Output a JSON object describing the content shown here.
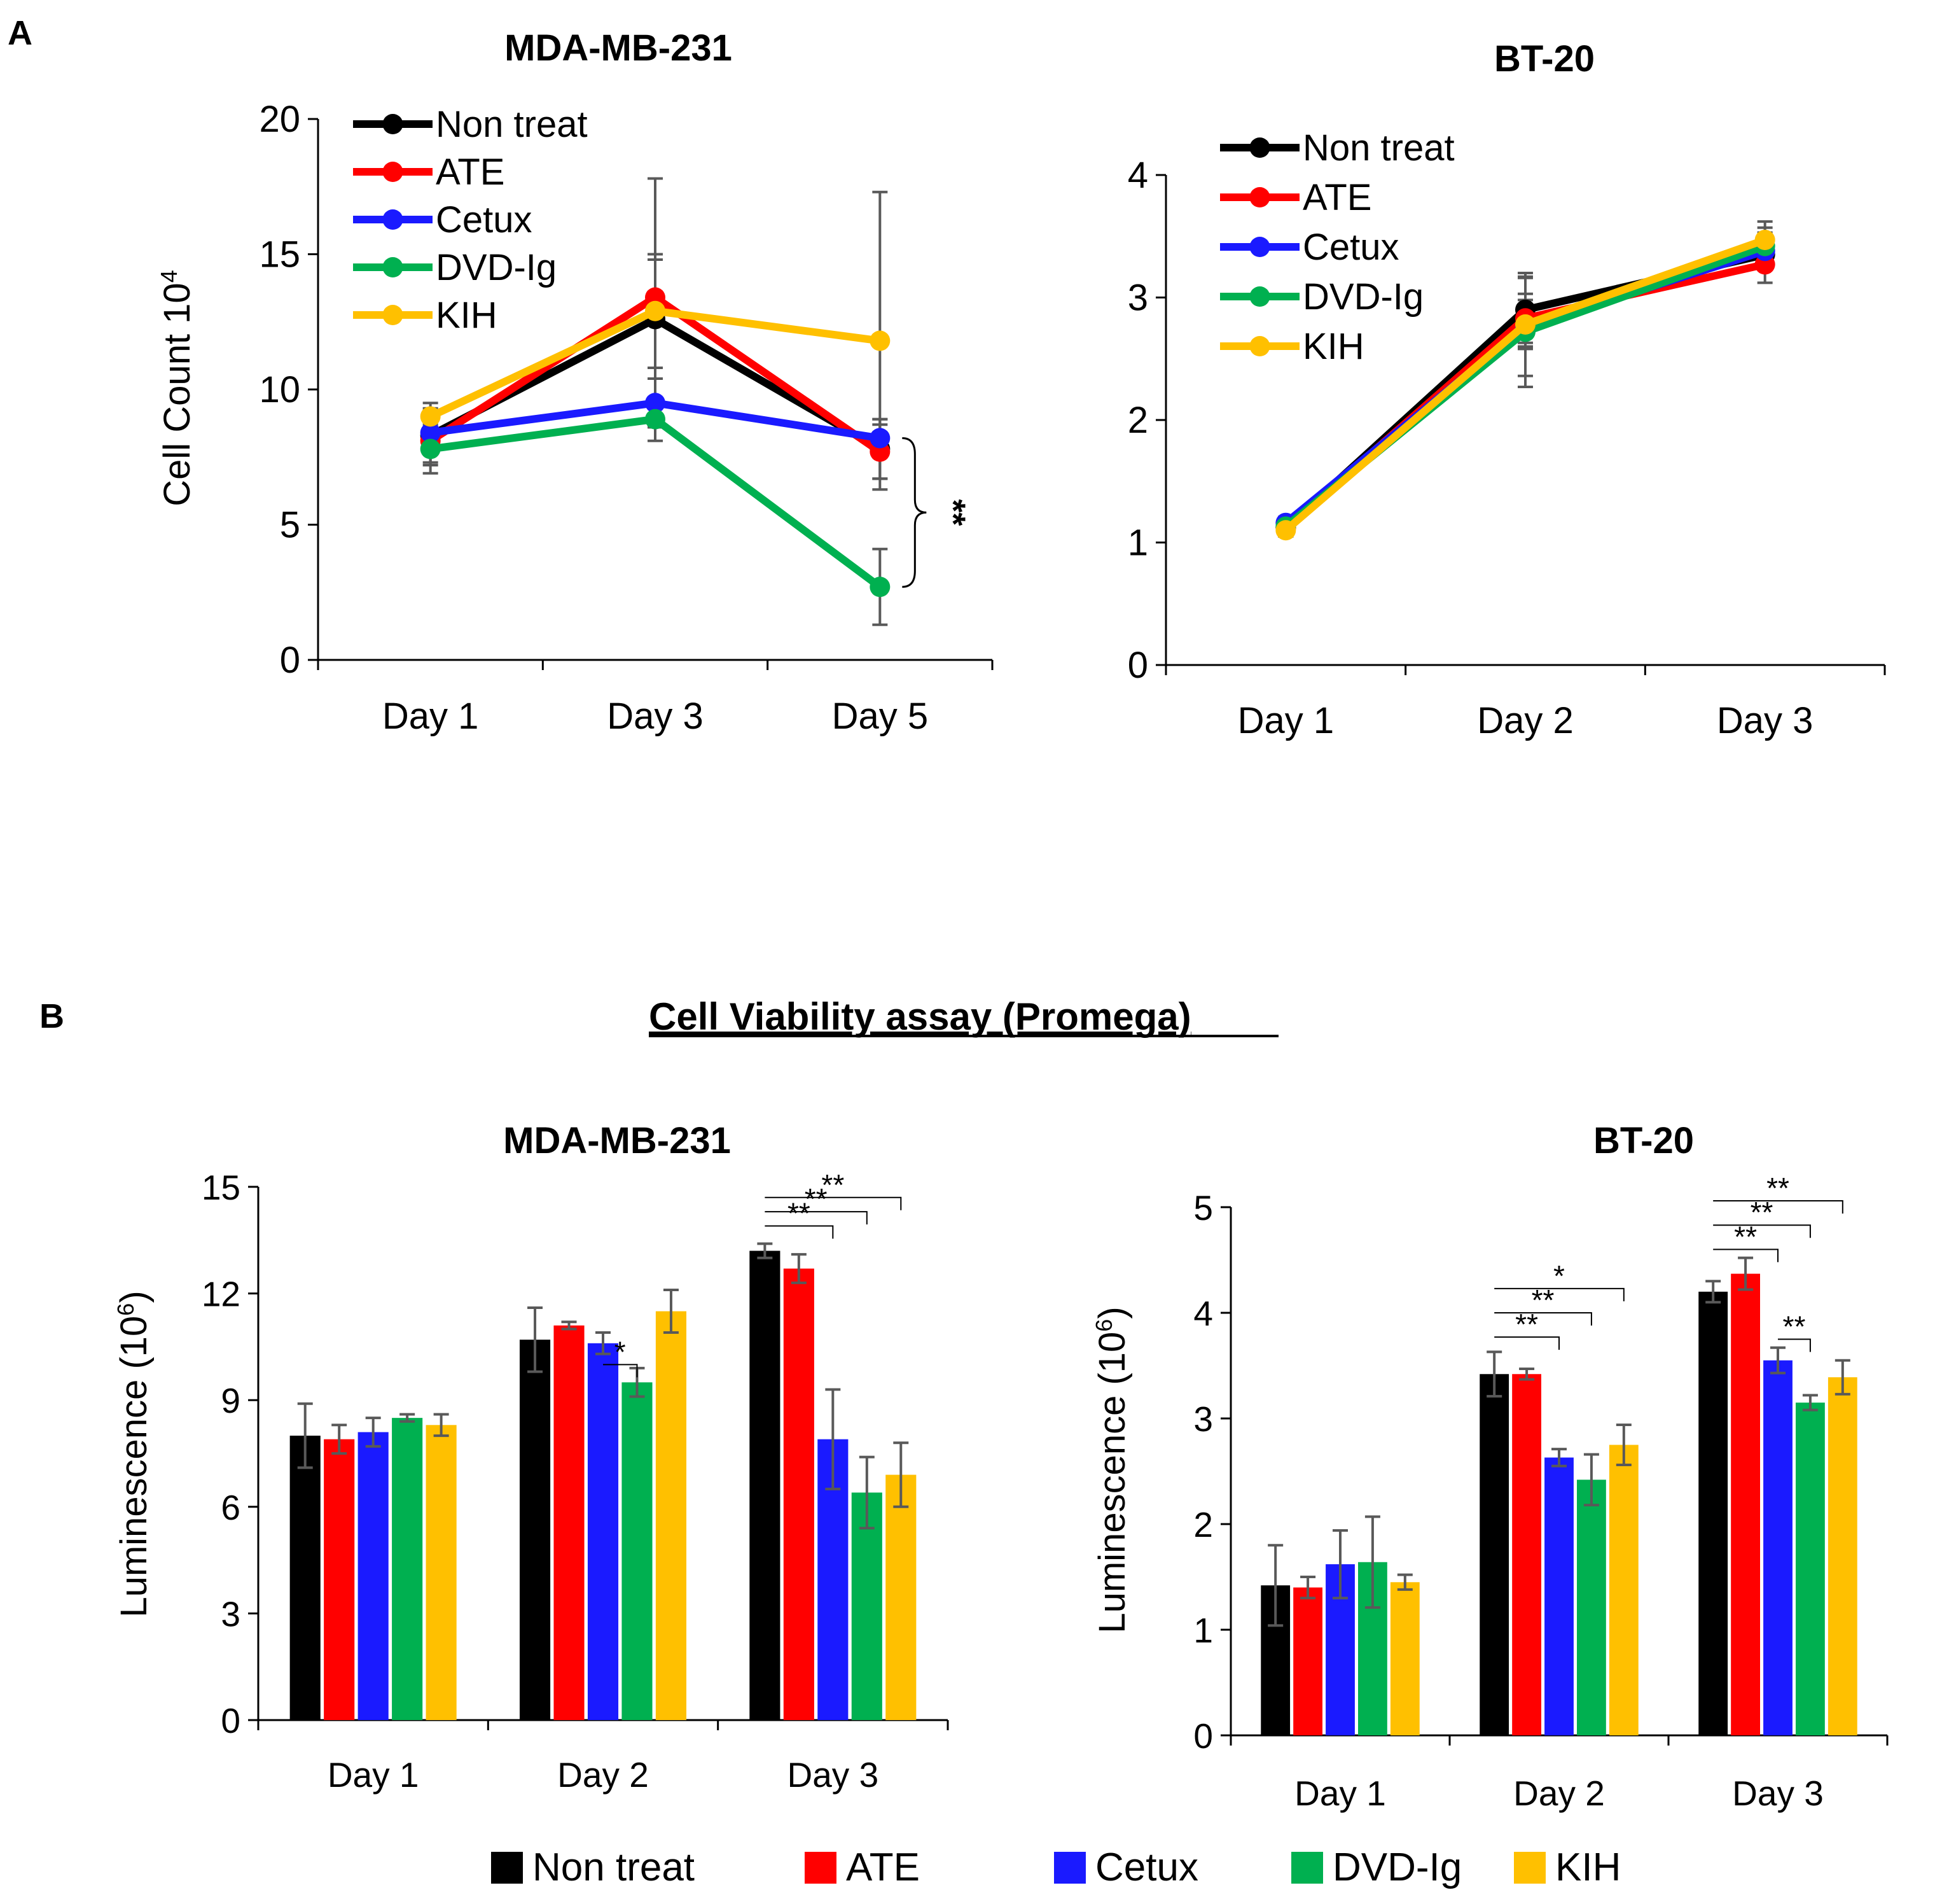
{
  "colors": {
    "Non treat": "#000000",
    "ATE": "#ff0000",
    "Cetux": "#1a1aff",
    "DVD-Ig": "#00b050",
    "KIH": "#ffc000",
    "error_bar": "#595959"
  },
  "panel_labels": {
    "a": "A",
    "b": "B"
  },
  "section_b_title": "Cell Viability assay (Promega)",
  "bottom_legend": [
    "Non treat",
    "ATE",
    "Cetux",
    "DVD-Ig",
    "KIH"
  ],
  "chart_data": [
    {
      "type": "line",
      "title": "MDA-MB-231",
      "ylabel_main": "Cell Count 10",
      "ylabel_sup": "4",
      "xlabel": "",
      "categories": [
        "Day 1",
        "Day 3",
        "Day 5"
      ],
      "ylim": [
        0,
        20
      ],
      "yticks": [
        0,
        5,
        10,
        15,
        20
      ],
      "legend": [
        "Non treat",
        "ATE",
        "Cetux",
        "DVD-Ig",
        "KIH"
      ],
      "series": [
        {
          "name": "Non treat",
          "values": [
            8.3,
            12.6,
            7.8
          ],
          "errors": [
            1.0,
            2.2,
            1.1
          ]
        },
        {
          "name": "ATE",
          "values": [
            8.1,
            13.4,
            7.7
          ],
          "errors": [
            0.9,
            4.4,
            1.0
          ]
        },
        {
          "name": "Cetux",
          "values": [
            8.4,
            9.5,
            8.2
          ],
          "errors": [
            0.8,
            0.9,
            0.7
          ]
        },
        {
          "name": "DVD-Ig",
          "values": [
            7.8,
            8.9,
            2.7
          ],
          "errors": [
            0.9,
            0.8,
            1.4
          ]
        },
        {
          "name": "KIH",
          "values": [
            9.0,
            12.9,
            11.8
          ],
          "errors": [
            0.5,
            2.1,
            5.5
          ]
        }
      ],
      "annotations": [
        {
          "text": "**",
          "category": "Day 5",
          "y_from": 2.7,
          "y_to": 8.2
        }
      ]
    },
    {
      "type": "line",
      "title": "BT-20",
      "xlabel": "",
      "ylabel": "",
      "categories": [
        "Day 1",
        "Day 2",
        "Day 3"
      ],
      "ylim": [
        0,
        4
      ],
      "yticks": [
        0,
        1,
        2,
        3,
        4
      ],
      "legend": [
        "Non treat",
        "ATE",
        "Cetux",
        "DVD-Ig",
        "KIH"
      ],
      "series": [
        {
          "name": "Non treat",
          "values": [
            1.12,
            2.9,
            3.35
          ],
          "errors": [
            0.07,
            0.3,
            0.1
          ]
        },
        {
          "name": "ATE",
          "values": [
            1.12,
            2.83,
            3.27
          ],
          "errors": [
            0.06,
            0.2,
            0.15
          ]
        },
        {
          "name": "Cetux",
          "values": [
            1.16,
            2.76,
            3.38
          ],
          "errors": [
            0.05,
            0.4,
            0.15
          ]
        },
        {
          "name": "DVD-Ig",
          "values": [
            1.13,
            2.72,
            3.42
          ],
          "errors": [
            0.06,
            0.45,
            0.15
          ]
        },
        {
          "name": "KIH",
          "values": [
            1.1,
            2.78,
            3.47
          ],
          "errors": [
            0.05,
            0.2,
            0.15
          ]
        }
      ]
    },
    {
      "type": "bar",
      "title": "MDA-MB-231",
      "ylabel_main": "Luminescence (10",
      "ylabel_sup": "6",
      "ylabel_end": ")",
      "xlabel": "",
      "categories": [
        "Day 1",
        "Day 2",
        "Day 3"
      ],
      "ylim": [
        0,
        15
      ],
      "yticks": [
        0,
        3,
        6,
        9,
        12,
        15
      ],
      "series": [
        {
          "name": "Non treat",
          "values": [
            8.0,
            10.7,
            13.2
          ],
          "errors": [
            0.9,
            0.9,
            0.2
          ]
        },
        {
          "name": "ATE",
          "values": [
            7.9,
            11.1,
            12.7
          ],
          "errors": [
            0.4,
            0.1,
            0.4
          ]
        },
        {
          "name": "Cetux",
          "values": [
            8.1,
            10.6,
            7.9
          ],
          "errors": [
            0.4,
            0.3,
            1.4
          ]
        },
        {
          "name": "DVD-Ig",
          "values": [
            8.5,
            9.5,
            6.4
          ],
          "errors": [
            0.1,
            0.4,
            1.0
          ]
        },
        {
          "name": "KIH",
          "values": [
            8.3,
            11.5,
            6.9
          ],
          "errors": [
            0.3,
            0.6,
            0.9
          ]
        }
      ],
      "significance": [
        {
          "text": "*",
          "category": "Day 2",
          "from": "Cetux",
          "to": "DVD-Ig",
          "level": 10.0
        },
        {
          "text": "**",
          "category": "Day 3",
          "from": "Non treat",
          "to": "Cetux",
          "level": 13.9
        },
        {
          "text": "**",
          "category": "Day 3",
          "from": "Non treat",
          "to": "DVD-Ig",
          "level": 14.3
        },
        {
          "text": "**",
          "category": "Day 3",
          "from": "Non treat",
          "to": "KIH",
          "level": 14.7
        }
      ]
    },
    {
      "type": "bar",
      "title": "BT-20",
      "ylabel_main": "Luminescence (10",
      "ylabel_sup": "6",
      "ylabel_end": ")",
      "xlabel": "",
      "categories": [
        "Day 1",
        "Day 2",
        "Day 3"
      ],
      "ylim": [
        0,
        5
      ],
      "yticks": [
        0,
        1,
        2,
        3,
        4,
        5
      ],
      "series": [
        {
          "name": "Non treat",
          "values": [
            1.42,
            3.42,
            4.2
          ],
          "errors": [
            0.38,
            0.21,
            0.1
          ]
        },
        {
          "name": "ATE",
          "values": [
            1.4,
            3.42,
            4.37
          ],
          "errors": [
            0.1,
            0.05,
            0.15
          ]
        },
        {
          "name": "Cetux",
          "values": [
            1.62,
            2.63,
            3.55
          ],
          "errors": [
            0.32,
            0.08,
            0.12
          ]
        },
        {
          "name": "DVD-Ig",
          "values": [
            1.64,
            2.42,
            3.15
          ],
          "errors": [
            0.43,
            0.24,
            0.07
          ]
        },
        {
          "name": "KIH",
          "values": [
            1.45,
            2.75,
            3.39
          ],
          "errors": [
            0.07,
            0.19,
            0.16
          ]
        }
      ],
      "significance": [
        {
          "text": "**",
          "category": "Day 2",
          "from": "Non treat",
          "to": "Cetux",
          "level": 3.77
        },
        {
          "text": "**",
          "category": "Day 2",
          "from": "Non treat",
          "to": "DVD-Ig",
          "level": 4.0
        },
        {
          "text": "*",
          "category": "Day 2",
          "from": "Non treat",
          "to": "KIH",
          "level": 4.23
        },
        {
          "text": "**",
          "category": "Day 3",
          "from": "Non treat",
          "to": "Cetux",
          "level": 4.6
        },
        {
          "text": "**",
          "category": "Day 3",
          "from": "Non treat",
          "to": "DVD-Ig",
          "level": 4.83
        },
        {
          "text": "**",
          "category": "Day 3",
          "from": "Non treat",
          "to": "KIH",
          "level": 5.06
        },
        {
          "text": "**",
          "category": "Day 3",
          "from": "Cetux",
          "to": "DVD-Ig",
          "level": 3.75
        }
      ]
    }
  ]
}
